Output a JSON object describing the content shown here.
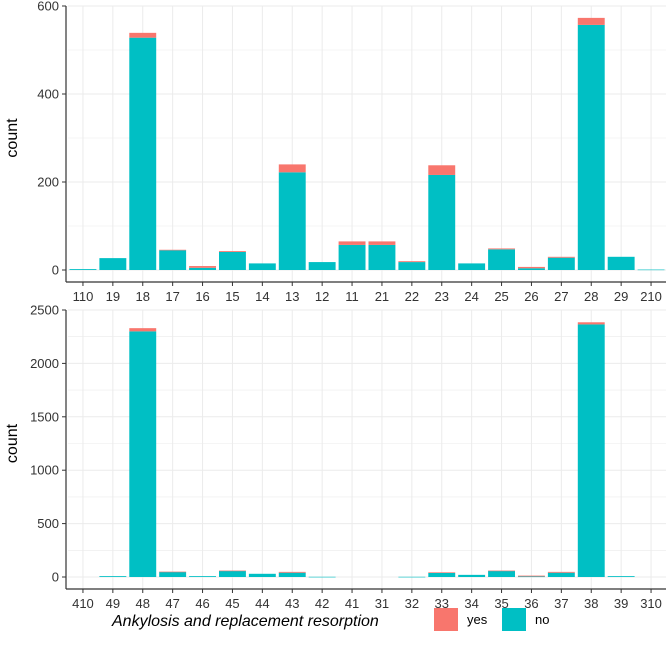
{
  "colors": {
    "yes": "#F8766D",
    "no": "#00BFC4",
    "grid": "#EBEBEB",
    "axis": "#333333"
  },
  "legend": {
    "title": "Ankylosis and replacement resorption",
    "items": [
      {
        "key": "yes",
        "label": "yes"
      },
      {
        "key": "no",
        "label": "no"
      }
    ]
  },
  "chart_data": [
    {
      "type": "bar",
      "stacked": true,
      "ylabel": "count",
      "xlabel": "",
      "ylim": [
        0,
        600
      ],
      "yticks": [
        0,
        200,
        400,
        600
      ],
      "categories": [
        "110",
        "19",
        "18",
        "17",
        "16",
        "15",
        "14",
        "13",
        "12",
        "11",
        "21",
        "22",
        "23",
        "24",
        "25",
        "26",
        "27",
        "28",
        "29",
        "210"
      ],
      "series": [
        {
          "name": "no",
          "values": [
            2,
            27,
            528,
            45,
            5,
            41,
            15,
            222,
            18,
            57,
            57,
            18,
            216,
            15,
            47,
            4,
            28,
            557,
            30,
            1
          ]
        },
        {
          "name": "yes",
          "values": [
            0,
            0,
            11,
            1,
            4,
            2,
            0,
            18,
            0,
            8,
            8,
            2,
            22,
            0,
            2,
            3,
            2,
            16,
            0,
            0
          ]
        }
      ]
    },
    {
      "type": "bar",
      "stacked": true,
      "ylabel": "count",
      "xlabel": "",
      "ylim": [
        0,
        2500
      ],
      "yticks": [
        0,
        500,
        1000,
        1500,
        2000,
        2500
      ],
      "categories": [
        "410",
        "49",
        "48",
        "47",
        "46",
        "45",
        "44",
        "43",
        "42",
        "41",
        "31",
        "32",
        "33",
        "34",
        "35",
        "36",
        "37",
        "38",
        "39",
        "310"
      ],
      "series": [
        {
          "name": "no",
          "values": [
            0,
            8,
            2300,
            48,
            8,
            58,
            30,
            40,
            2,
            0,
            0,
            2,
            38,
            20,
            58,
            5,
            40,
            2365,
            8,
            0
          ]
        },
        {
          "name": "yes",
          "values": [
            0,
            0,
            30,
            2,
            0,
            2,
            0,
            8,
            0,
            0,
            0,
            0,
            6,
            0,
            2,
            8,
            8,
            20,
            0,
            0
          ]
        }
      ]
    }
  ]
}
